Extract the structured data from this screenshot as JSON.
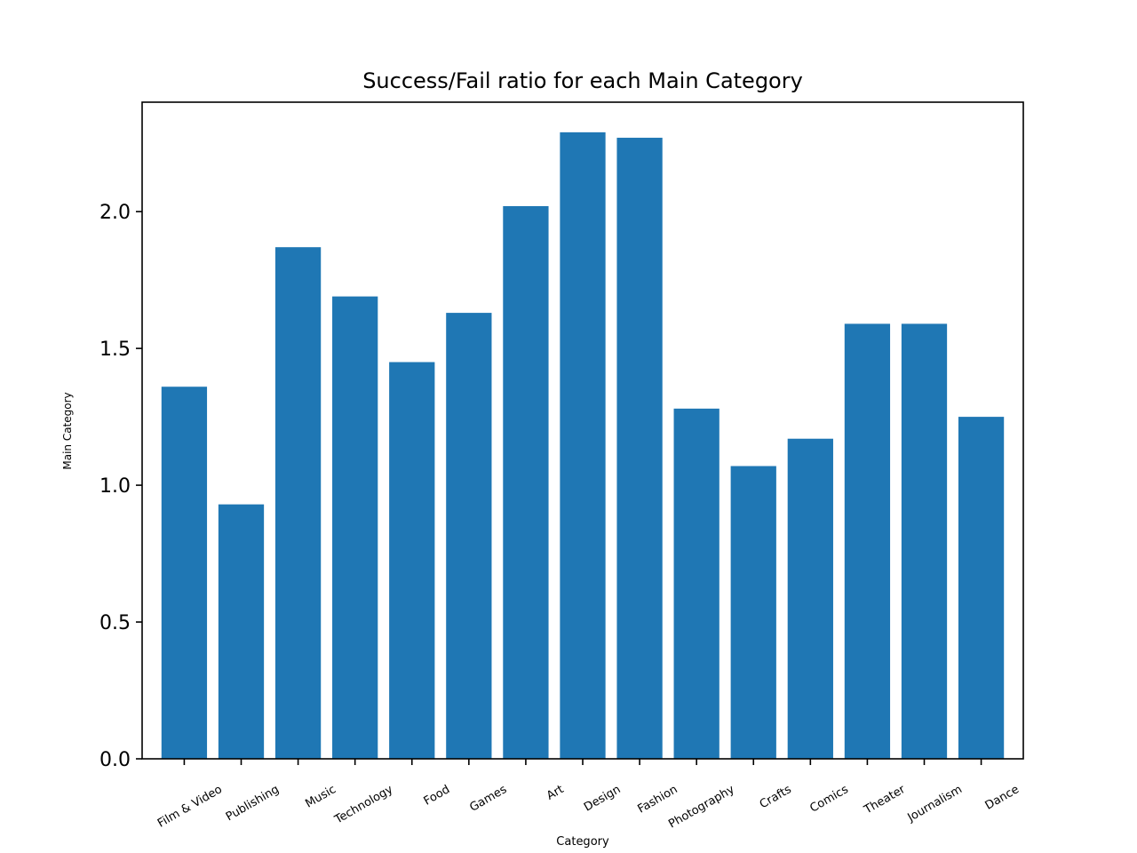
{
  "chart_data": {
    "type": "bar",
    "title": "Success/Fail ratio for each Main Category",
    "xlabel": "Category",
    "ylabel": "Main Category",
    "categories": [
      "Film & Video",
      "Publishing",
      "Music",
      "Technology",
      "Food",
      "Games",
      "Art",
      "Design",
      "Fashion",
      "Photography",
      "Crafts",
      "Comics",
      "Theater",
      "Journalism",
      "Dance"
    ],
    "values": [
      1.36,
      0.93,
      1.87,
      1.69,
      1.45,
      1.63,
      2.02,
      2.29,
      2.27,
      1.28,
      1.07,
      1.17,
      1.59,
      1.59,
      1.25
    ],
    "ylim": [
      0,
      2.4
    ],
    "yticks": [
      0.0,
      0.5,
      1.0,
      1.5,
      2.0
    ],
    "ytick_labels": [
      "0.0",
      "0.5",
      "1.0",
      "1.5",
      "2.0"
    ],
    "bar_color": "#1f77b4",
    "grid": false,
    "legend": "none"
  }
}
